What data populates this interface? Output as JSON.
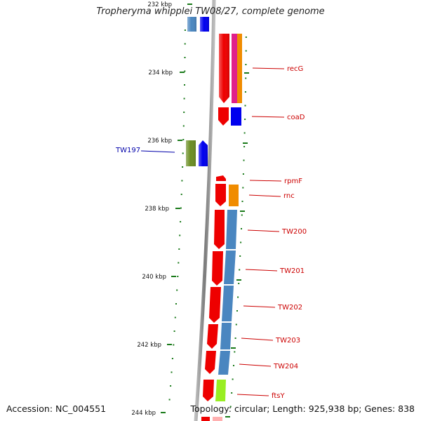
{
  "title": "Tropheryma whipplei TW08/27, complete genome",
  "footer": {
    "accession": "Accession: NC_004551",
    "topology": "Topology: circular; Length: 925,938 bp; Genes: 838"
  },
  "colors": {
    "tick": "#1a7a1a",
    "backbone": "#8c8c8c",
    "label_red": "#cc0000",
    "label_blue": "#0000aa"
  },
  "scale": {
    "tick_labels": [
      "232 kbp",
      "234 kbp",
      "236 kbp",
      "238 kbp",
      "240 kbp",
      "242 kbp",
      "244 kbp"
    ]
  },
  "genes": [
    {
      "label": "recG",
      "color_label": "red"
    },
    {
      "label": "coaD",
      "color_label": "red"
    },
    {
      "label": "TW197",
      "color_label": "blue"
    },
    {
      "label": "rpmF",
      "color_label": "red"
    },
    {
      "label": "rnc",
      "color_label": "red"
    },
    {
      "label": "TW200",
      "color_label": "red"
    },
    {
      "label": "TW201",
      "color_label": "red"
    },
    {
      "label": "TW202",
      "color_label": "red"
    },
    {
      "label": "TW203",
      "color_label": "red"
    },
    {
      "label": "TW204",
      "color_label": "red"
    },
    {
      "label": "ftsY",
      "color_label": "red"
    }
  ]
}
